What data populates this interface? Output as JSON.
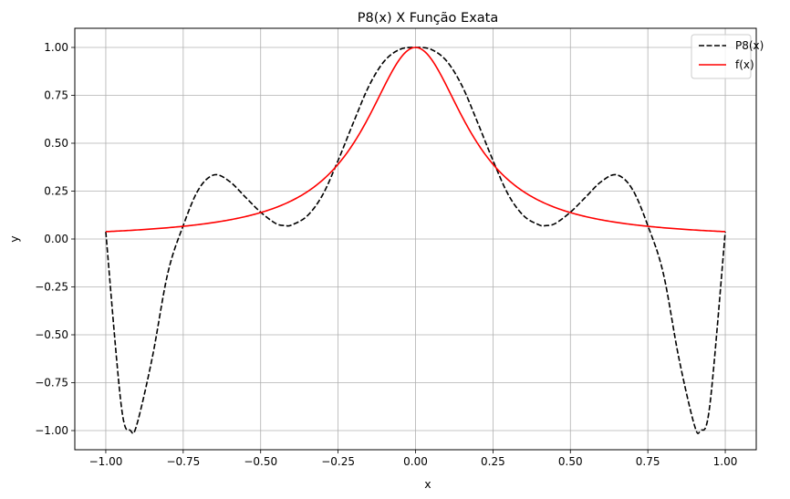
{
  "chart_data": {
    "type": "line",
    "title": "P8(x) X Função Exata",
    "xlabel": "x",
    "ylabel": "y",
    "xlim": [
      -1.1,
      1.1
    ],
    "ylim": [
      -1.1,
      1.1
    ],
    "grid": true,
    "legend_position": "top-right",
    "x_ticks": [
      -1.0,
      -0.75,
      -0.5,
      -0.25,
      0.0,
      0.25,
      0.5,
      0.75,
      1.0
    ],
    "x_tick_labels": [
      "−1.00",
      "−0.75",
      "−0.50",
      "−0.25",
      "0.00",
      "0.25",
      "0.50",
      "0.75",
      "1.00"
    ],
    "y_ticks": [
      -1.0,
      -0.75,
      -0.5,
      -0.25,
      0.0,
      0.25,
      0.5,
      0.75,
      1.0
    ],
    "y_tick_labels": [
      "−1.00",
      "−0.75",
      "−0.50",
      "−0.25",
      "0.00",
      "0.25",
      "0.50",
      "0.75",
      "1.00"
    ],
    "series": [
      {
        "name": "P8(x)",
        "color": "#000000",
        "style": "dashed",
        "x": [
          -1.0,
          -0.95,
          -0.92,
          -0.9,
          -0.85,
          -0.8,
          -0.75,
          -0.7,
          -0.65,
          -0.6,
          -0.55,
          -0.5,
          -0.45,
          -0.42,
          -0.4,
          -0.35,
          -0.3,
          -0.25,
          -0.2,
          -0.15,
          -0.1,
          -0.05,
          0.0,
          0.05,
          0.1,
          0.15,
          0.2,
          0.25,
          0.3,
          0.35,
          0.4,
          0.42,
          0.45,
          0.5,
          0.55,
          0.6,
          0.65,
          0.7,
          0.75,
          0.8,
          0.85,
          0.9,
          0.92,
          0.95,
          1.0
        ],
        "y": [
          0.038,
          -0.87,
          -1.0,
          -0.97,
          -0.62,
          -0.18,
          0.07,
          0.26,
          0.335,
          0.3,
          0.22,
          0.14,
          0.08,
          0.07,
          0.073,
          0.12,
          0.23,
          0.41,
          0.61,
          0.8,
          0.93,
          0.99,
          1.0,
          0.99,
          0.93,
          0.8,
          0.61,
          0.41,
          0.23,
          0.12,
          0.073,
          0.07,
          0.08,
          0.14,
          0.22,
          0.3,
          0.335,
          0.26,
          0.07,
          -0.18,
          -0.62,
          -0.97,
          -1.0,
          -0.87,
          0.038
        ]
      },
      {
        "name": "f(x)",
        "color": "#ff0000",
        "style": "solid",
        "function": "1/(1+25x^2)",
        "x_range": [
          -1.0,
          1.0
        ]
      }
    ]
  }
}
